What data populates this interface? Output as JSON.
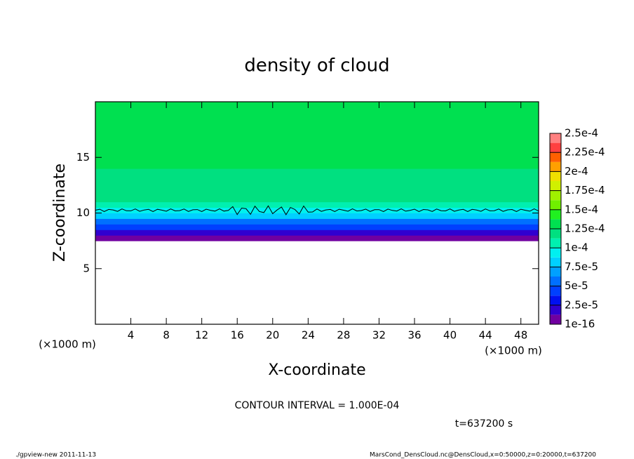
{
  "chart_data": {
    "type": "contour",
    "title": "density of cloud",
    "xlabel": "X-coordinate",
    "ylabel": "Z-coordinate",
    "xunit": "(×1000 m)",
    "yunit": "(×1000 m)",
    "xlim": [
      0,
      50
    ],
    "ylim": [
      0,
      20
    ],
    "xticks": [
      4,
      8,
      12,
      16,
      20,
      24,
      28,
      32,
      36,
      40,
      44,
      48
    ],
    "yticks": [
      5,
      10,
      15
    ],
    "field": {
      "z": [
        7.5,
        8,
        8.5,
        9,
        9.5,
        10,
        10.5,
        11,
        12,
        14,
        17,
        20
      ],
      "values": [
        1e-16,
        2e-05,
        4e-05,
        6e-05,
        8e-05,
        9.5e-05,
        0.000105,
        0.000115,
        0.000125,
        0.00013,
        0.000135,
        0.00013
      ]
    },
    "contour_levels": [
      0.0001
    ],
    "colorbar": {
      "ticks": [
        {
          "value": 1e-16,
          "label": "1e-16"
        },
        {
          "value": 2.5e-05,
          "label": "2.5e-5"
        },
        {
          "value": 5e-05,
          "label": "5e-5"
        },
        {
          "value": 7.5e-05,
          "label": "7.5e-5"
        },
        {
          "value": 0.0001,
          "label": "1e-4"
        },
        {
          "value": 0.000125,
          "label": "1.25e-4"
        },
        {
          "value": 0.00015,
          "label": "1.5e-4"
        },
        {
          "value": 0.000175,
          "label": "1.75e-4"
        },
        {
          "value": 0.0002,
          "label": "2e-4"
        },
        {
          "value": 0.000225,
          "label": "2.25e-4"
        },
        {
          "value": 0.00025,
          "label": "2.5e-4"
        }
      ],
      "colors": [
        "#7000a0",
        "#3000d0",
        "#0010f0",
        "#0040ff",
        "#0070ff",
        "#00a0ff",
        "#00d0ff",
        "#00f0f0",
        "#00f0b0",
        "#00e080",
        "#00e050",
        "#20f020",
        "#70f000",
        "#a0f000",
        "#d0f000",
        "#f0e000",
        "#ffa000",
        "#ff6000",
        "#ff4040",
        "#ff8080"
      ]
    },
    "contour_interval": "CONTOUR INTERVAL = 1.000E-04",
    "time_label": "t=637200 s",
    "footer_left": "./gpview-new  2011-11-13",
    "footer_right": "MarsCond_DensCloud.nc@DensCloud,x=0:50000,z=0:20000,t=637200"
  }
}
